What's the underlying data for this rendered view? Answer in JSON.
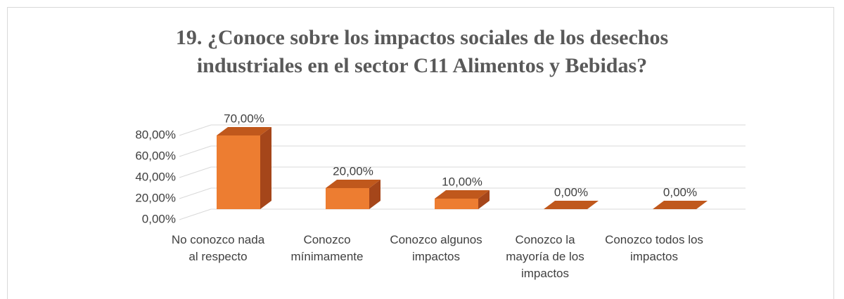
{
  "chart_data": {
    "type": "bar3d",
    "title": "19. ¿Conoce sobre los impactos sociales de los desechos industriales en el sector C11 Alimentos y Bebidas?",
    "categories": [
      "No conozco nada al respecto",
      "Conozco mínimamente",
      "Conozco algunos impactos",
      "Conozco la mayoría de los impactos",
      "Conozco todos los impactos"
    ],
    "values": [
      70,
      20,
      10,
      0,
      0
    ],
    "value_labels": [
      "70,00%",
      "20,00%",
      "10,00%",
      "0,00%",
      "0,00%"
    ],
    "color": "#ed7d31",
    "ylim": [
      0,
      80
    ],
    "yticks": [
      {
        "value": 0,
        "label": "0,00%"
      },
      {
        "value": 20,
        "label": "20,00%"
      },
      {
        "value": 40,
        "label": "40,00%"
      },
      {
        "value": 60,
        "label": "60,00%"
      },
      {
        "value": 80,
        "label": "80,00%"
      }
    ],
    "grid": true
  }
}
